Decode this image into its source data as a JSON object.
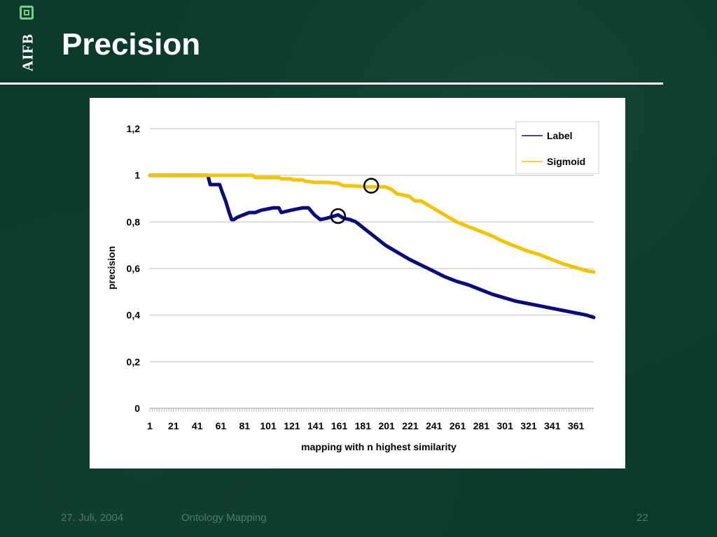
{
  "logo": {
    "text": "AIFB"
  },
  "slide": {
    "title": "Precision"
  },
  "footer": {
    "date": "27. Juli, 2004",
    "topic": "Ontology Mapping",
    "page": "22"
  },
  "chart_data": {
    "type": "line",
    "title": "",
    "xlabel": "mapping with n highest similarity",
    "ylabel": "precision",
    "xlim": [
      1,
      376
    ],
    "ylim": [
      0,
      1.2
    ],
    "x_ticks": [
      "1",
      "21",
      "41",
      "61",
      "81",
      "101",
      "121",
      "141",
      "161",
      "181",
      "201",
      "221",
      "241",
      "261",
      "281",
      "301",
      "321",
      "341",
      "361"
    ],
    "y_ticks": [
      "0",
      "0,2",
      "0,4",
      "0,6",
      "0,8",
      "1",
      "1,2"
    ],
    "y_tick_values": [
      0,
      0.2,
      0.4,
      0.6,
      0.8,
      1.0,
      1.2
    ],
    "grid": "horizontal",
    "legend": "top-right",
    "series": [
      {
        "name": "Label",
        "color": "#0a0a80",
        "x": [
          1,
          50,
          52,
          60,
          62,
          65,
          68,
          70,
          72,
          75,
          80,
          85,
          90,
          95,
          100,
          105,
          110,
          112,
          120,
          130,
          135,
          140,
          145,
          150,
          160,
          165,
          170,
          175,
          180,
          190,
          200,
          210,
          220,
          230,
          240,
          250,
          260,
          270,
          280,
          290,
          300,
          310,
          320,
          330,
          340,
          350,
          360,
          370,
          376
        ],
        "y": [
          1.0,
          1.0,
          0.96,
          0.96,
          0.93,
          0.89,
          0.84,
          0.81,
          0.81,
          0.82,
          0.83,
          0.84,
          0.84,
          0.85,
          0.855,
          0.86,
          0.86,
          0.84,
          0.85,
          0.86,
          0.86,
          0.83,
          0.81,
          0.815,
          0.83,
          0.815,
          0.81,
          0.8,
          0.78,
          0.74,
          0.7,
          0.67,
          0.64,
          0.615,
          0.59,
          0.565,
          0.545,
          0.53,
          0.51,
          0.49,
          0.475,
          0.46,
          0.45,
          0.44,
          0.43,
          0.42,
          0.41,
          0.4,
          0.39
        ]
      },
      {
        "name": "Sigmoid",
        "color": "#f5c400",
        "x": [
          1,
          30,
          60,
          88,
          90,
          110,
          112,
          120,
          122,
          130,
          132,
          140,
          145,
          150,
          160,
          165,
          170,
          185,
          200,
          205,
          210,
          220,
          225,
          230,
          240,
          250,
          260,
          270,
          280,
          290,
          300,
          310,
          320,
          330,
          340,
          350,
          360,
          370,
          376
        ],
        "y": [
          1.0,
          1.0,
          1.0,
          1.0,
          0.99,
          0.99,
          0.985,
          0.985,
          0.98,
          0.98,
          0.975,
          0.97,
          0.97,
          0.97,
          0.965,
          0.955,
          0.955,
          0.95,
          0.95,
          0.94,
          0.92,
          0.91,
          0.89,
          0.89,
          0.86,
          0.83,
          0.8,
          0.78,
          0.76,
          0.74,
          0.715,
          0.695,
          0.675,
          0.66,
          0.64,
          0.62,
          0.605,
          0.59,
          0.585
        ]
      }
    ],
    "annotations": [
      {
        "type": "circle",
        "x": 160,
        "y": 0.825
      },
      {
        "type": "circle",
        "x": 188,
        "y": 0.955
      }
    ]
  }
}
